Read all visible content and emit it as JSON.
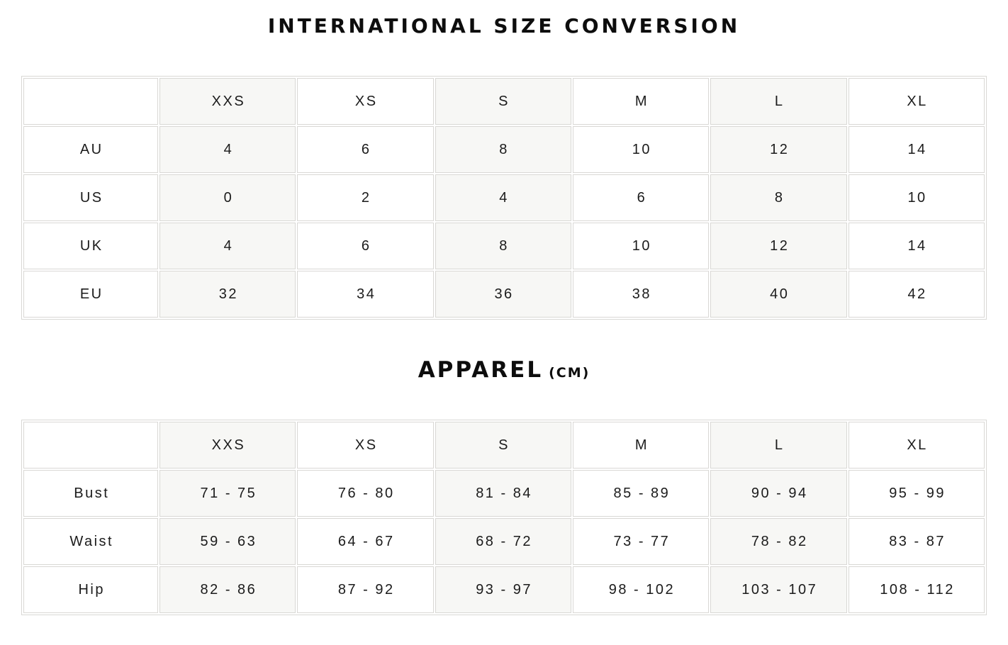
{
  "titles": {
    "main": "INTERNATIONAL SIZE CONVERSION",
    "apparel": "APPAREL",
    "apparel_unit": "(CM)"
  },
  "size_table": {
    "columns": [
      "",
      "XXS",
      "XS",
      "S",
      "M",
      "L",
      "XL"
    ],
    "rows": [
      {
        "label": "AU",
        "values": [
          "4",
          "6",
          "8",
          "10",
          "12",
          "14"
        ]
      },
      {
        "label": "US",
        "values": [
          "0",
          "2",
          "4",
          "6",
          "8",
          "10"
        ]
      },
      {
        "label": "UK",
        "values": [
          "4",
          "6",
          "8",
          "10",
          "12",
          "14"
        ]
      },
      {
        "label": "EU",
        "values": [
          "32",
          "34",
          "36",
          "38",
          "40",
          "42"
        ]
      }
    ]
  },
  "apparel_table": {
    "columns": [
      "",
      "XXS",
      "XS",
      "S",
      "M",
      "L",
      "XL"
    ],
    "rows": [
      {
        "label": "Bust",
        "values": [
          "71 - 75",
          "76 - 80",
          "81 - 84",
          "85 - 89",
          "90 - 94",
          "95 - 99"
        ]
      },
      {
        "label": "Waist",
        "values": [
          "59 - 63",
          "64 - 67",
          "68 - 72",
          "73 - 77",
          "78 - 82",
          "83 - 87"
        ]
      },
      {
        "label": "Hip",
        "values": [
          "82 - 86",
          "87 - 92",
          "93 - 97",
          "98 - 102",
          "103 - 107",
          "108 - 112"
        ]
      }
    ]
  },
  "colors": {
    "shaded_column": "#f7f7f5",
    "cell_border": "#d9d8d5",
    "text": "#1b1b1b",
    "background": "#ffffff"
  }
}
